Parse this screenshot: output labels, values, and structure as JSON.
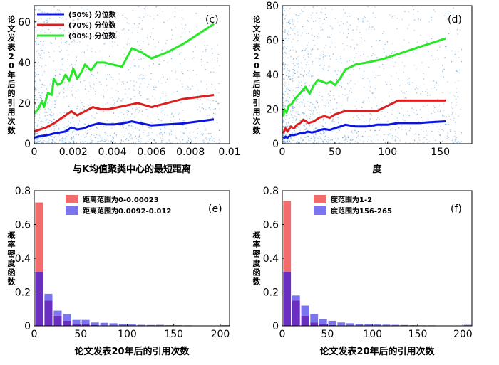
{
  "colors": {
    "p50": "#0a14dc",
    "p70": "#dc1e1e",
    "p90": "#28e628",
    "scatter": "#6fa8d8",
    "hist_red": "#f26c6c",
    "hist_blue": "#7a74ee",
    "overlap": "#6a2ec0"
  },
  "chart_data": [
    {
      "id": "c",
      "type": "line",
      "panel_label": "(c)",
      "xlabel": "与K均值聚类中心的最短距离",
      "ylabel": "论文发表20年后的引用次数",
      "xlim": [
        0,
        0.01
      ],
      "ylim": [
        0,
        68
      ],
      "xticks": [
        0,
        0.002,
        0.004,
        0.006,
        0.008,
        0.01
      ],
      "xtick_labels": [
        "0",
        "0.002",
        "0.004",
        "0.006",
        "0.008",
        "0.01"
      ],
      "yticks": [
        0,
        20,
        40,
        60
      ],
      "ytick_labels": [
        "0",
        "20",
        "40",
        "60"
      ],
      "legend_position": "top-left",
      "background_scatter": true,
      "series": [
        {
          "name": "(50%) 分位数",
          "color_key": "p50",
          "x": [
            0,
            0.0002,
            0.0005,
            0.0008,
            0.001,
            0.0013,
            0.0016,
            0.0019,
            0.0022,
            0.0025,
            0.0029,
            0.0033,
            0.0037,
            0.0041,
            0.0045,
            0.005,
            0.0055,
            0.006,
            0.0068,
            0.0076,
            0.0084,
            0.0092
          ],
          "y": [
            3,
            3.5,
            4,
            4.5,
            5,
            5.5,
            6,
            8,
            7,
            7.5,
            9,
            10,
            9.5,
            9.5,
            10,
            11,
            10,
            9,
            9.5,
            10,
            11,
            12
          ]
        },
        {
          "name": "(70%) 分位数",
          "color_key": "p70",
          "x": [
            0,
            0.0003,
            0.0006,
            0.001,
            0.0013,
            0.0016,
            0.0019,
            0.0022,
            0.0026,
            0.003,
            0.0034,
            0.0038,
            0.0043,
            0.0048,
            0.0053,
            0.006,
            0.0068,
            0.0076,
            0.0084,
            0.0092
          ],
          "y": [
            6,
            7,
            8,
            10,
            12,
            14,
            16,
            14,
            16,
            18,
            17,
            17,
            18,
            19,
            20,
            18,
            20,
            22,
            23,
            24
          ]
        },
        {
          "name": "(90%) 分位数",
          "color_key": "p90",
          "x": [
            0,
            0.0002,
            0.0004,
            0.0005,
            0.0007,
            0.0009,
            0.001,
            0.0012,
            0.0014,
            0.0016,
            0.0018,
            0.002,
            0.0022,
            0.0024,
            0.0026,
            0.0029,
            0.0032,
            0.0036,
            0.004,
            0.0045,
            0.005,
            0.0055,
            0.006,
            0.0068,
            0.0076,
            0.0084,
            0.0092
          ],
          "y": [
            15,
            17,
            21,
            18,
            25,
            24,
            32,
            29,
            30,
            34,
            31,
            37,
            32,
            35,
            39,
            36,
            40,
            40,
            39,
            38,
            47,
            45,
            42,
            45,
            49,
            54,
            59
          ]
        }
      ]
    },
    {
      "id": "d",
      "type": "line",
      "panel_label": "(d)",
      "xlabel": "度",
      "ylabel": "论文发表20年后的引用次数",
      "xlim": [
        0,
        180
      ],
      "ylim": [
        0,
        80
      ],
      "xticks": [
        0,
        50,
        100,
        150
      ],
      "xtick_labels": [
        "0",
        "50",
        "100",
        "150"
      ],
      "yticks": [
        0,
        20,
        40,
        60,
        80
      ],
      "ytick_labels": [
        "0",
        "20",
        "40",
        "60",
        "80"
      ],
      "background_scatter": true,
      "series": [
        {
          "color_key": "p50",
          "x": [
            1,
            3,
            5,
            8,
            11,
            14,
            17,
            20,
            24,
            28,
            32,
            36,
            40,
            45,
            50,
            55,
            60,
            70,
            80,
            90,
            100,
            110,
            120,
            130,
            140,
            155
          ],
          "y": [
            3,
            4,
            3.5,
            5,
            5,
            5.5,
            6,
            6,
            7,
            6.5,
            7,
            8,
            8.5,
            8,
            9,
            10,
            11,
            10,
            10,
            11,
            11,
            12,
            12,
            12,
            12.5,
            13
          ]
        },
        {
          "color_key": "p70",
          "x": [
            1,
            3,
            5,
            8,
            11,
            14,
            17,
            20,
            25,
            30,
            35,
            40,
            45,
            50,
            55,
            60,
            70,
            80,
            90,
            100,
            110,
            120,
            130,
            140,
            155
          ],
          "y": [
            6,
            9,
            7,
            10,
            9,
            11,
            12,
            14,
            12,
            13,
            15,
            16,
            15,
            17,
            18,
            19,
            19,
            19,
            19,
            22,
            25,
            25,
            25,
            25,
            25
          ]
        },
        {
          "color_key": "p90",
          "x": [
            1,
            2,
            4,
            6,
            9,
            12,
            15,
            18,
            22,
            26,
            30,
            34,
            38,
            42,
            46,
            50,
            55,
            60,
            70,
            80,
            95,
            110,
            125,
            140,
            155
          ],
          "y": [
            16,
            20,
            18,
            22,
            23,
            26,
            28,
            30,
            33,
            29,
            34,
            37,
            36,
            35,
            36,
            34,
            38,
            43,
            46,
            47,
            49,
            52,
            55,
            58,
            61
          ]
        }
      ]
    },
    {
      "id": "e",
      "type": "bar",
      "panel_label": "(e)",
      "xlabel": "论文发表20年后的引用次数",
      "ylabel": "概率密度函数",
      "xlim": [
        0,
        210
      ],
      "ylim": [
        0,
        0.8
      ],
      "xticks": [
        0,
        50,
        100,
        150,
        200
      ],
      "xtick_labels": [
        "0",
        "50",
        "100",
        "150",
        "200"
      ],
      "yticks": [
        0,
        0.2,
        0.4,
        0.6,
        0.8
      ],
      "ytick_labels": [
        "0",
        "0.2",
        "0.4",
        "0.6",
        "0.8"
      ],
      "bin_width": 10,
      "legend_position": "top-left",
      "series": [
        {
          "name": "距离范围为0-0.00023",
          "color_key": "hist_red",
          "x": [
            0,
            10,
            20,
            30,
            40,
            50,
            60,
            70,
            80,
            90,
            100,
            110,
            120,
            130,
            140,
            150,
            160,
            170,
            180,
            190,
            200
          ],
          "values": [
            0.73,
            0.15,
            0.06,
            0.03,
            0.01,
            0.01,
            0.005,
            0.003,
            0.002,
            0.001,
            0.001,
            0,
            0,
            0,
            0,
            0,
            0,
            0,
            0,
            0,
            0
          ]
        },
        {
          "name": "距离范围为0.0092-0.012",
          "color_key": "hist_blue",
          "x": [
            0,
            10,
            20,
            30,
            40,
            50,
            60,
            70,
            80,
            90,
            100,
            110,
            120,
            130,
            140,
            150,
            160,
            170,
            180,
            190,
            200
          ],
          "values": [
            0.32,
            0.19,
            0.09,
            0.07,
            0.035,
            0.035,
            0.02,
            0.018,
            0.015,
            0.01,
            0.008,
            0.006,
            0.005,
            0.006,
            0.004,
            0.004,
            0.003,
            0.002,
            0.002,
            0.002,
            0.004
          ]
        }
      ]
    },
    {
      "id": "f",
      "type": "bar",
      "panel_label": "(f)",
      "xlabel": "论文发表20年后的引用次数",
      "ylabel": "概率密度函数",
      "xlim": [
        0,
        210
      ],
      "ylim": [
        0,
        0.8
      ],
      "xticks": [
        0,
        50,
        100,
        150,
        200
      ],
      "xtick_labels": [
        "0",
        "50",
        "100",
        "150",
        "200"
      ],
      "yticks": [
        0,
        0.2,
        0.4,
        0.6,
        0.8
      ],
      "ytick_labels": [
        "0",
        "0.2",
        "0.4",
        "0.6",
        "0.8"
      ],
      "bin_width": 10,
      "legend_position": "top-left",
      "series": [
        {
          "name": "度范围为1-2",
          "color_key": "hist_red",
          "x": [
            0,
            10,
            20,
            30,
            40,
            50,
            60,
            70,
            80,
            90,
            100,
            110,
            120,
            130,
            140,
            150,
            160,
            170,
            180,
            190,
            200
          ],
          "values": [
            0.74,
            0.15,
            0.06,
            0.02,
            0.01,
            0.005,
            0.003,
            0.002,
            0.001,
            0,
            0,
            0,
            0,
            0,
            0,
            0,
            0,
            0,
            0,
            0,
            0
          ]
        },
        {
          "name": "度范围为156-265",
          "color_key": "hist_blue",
          "x": [
            0,
            10,
            20,
            30,
            40,
            50,
            60,
            70,
            80,
            90,
            100,
            110,
            120,
            130,
            140,
            150,
            160,
            170,
            180,
            190,
            200
          ],
          "values": [
            0.32,
            0.18,
            0.12,
            0.07,
            0.04,
            0.03,
            0.02,
            0.015,
            0.012,
            0.01,
            0.008,
            0.007,
            0.006,
            0.005,
            0.004,
            0.003,
            0.003,
            0.002,
            0.002,
            0.002,
            0.006
          ]
        }
      ]
    }
  ]
}
